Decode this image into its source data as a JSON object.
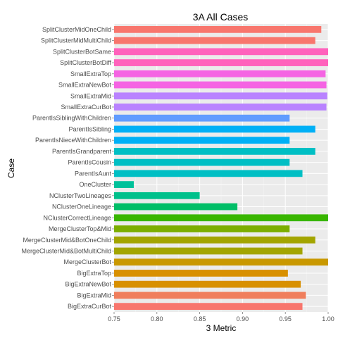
{
  "chart_data": {
    "type": "bar",
    "orientation": "horizontal",
    "title": "3A All Cases",
    "xlabel": "3 Metric",
    "ylabel": "Case",
    "xlim": [
      0.75,
      1.0
    ],
    "xticks": [
      "0.75",
      "0.80",
      "0.85",
      "0.90",
      "0.95",
      "1.00"
    ],
    "xtick_values": [
      0.75,
      0.8,
      0.85,
      0.9,
      0.95,
      1.0
    ],
    "grid": true,
    "panel_background": "#ebebeb",
    "grid_color": "#ffffff",
    "categories": [
      "SplitClusterMidOneChild",
      "SplitClusterMidMultiChild",
      "SplitClusterBotSame",
      "SplitClusterBotDiff",
      "SmallExtraTop",
      "SmallExtraNewBot",
      "SmallExtraMid",
      "SmallExtraCurBot",
      "ParentIsSiblingWithChildren",
      "ParentIsSibling",
      "ParentIsNieceWithChildren",
      "ParentIsGrandparent",
      "ParentIsCousin",
      "ParentIsAunt",
      "OneCluster",
      "NClusterTwoLineages",
      "NClusterOneLineage",
      "NClusterCorrectLineage",
      "MergeClusterTop&Mid",
      "MergeClusterMid&BotOneChild",
      "MergeClusterMid&BotMultiChild",
      "MergeClusterBot",
      "BigExtraTop",
      "BigExtraNewBot",
      "BigExtraMid",
      "BigExtraCurBot"
    ],
    "values": [
      0.992,
      0.985,
      1.0,
      1.0,
      0.997,
      0.998,
      0.999,
      0.998,
      0.955,
      0.985,
      0.955,
      0.985,
      0.955,
      0.97,
      0.773,
      0.85,
      0.894,
      1.0,
      0.955,
      0.985,
      0.97,
      1.0,
      0.953,
      0.968,
      0.974,
      0.97
    ],
    "colors": [
      "#f8766d",
      "#f8766d",
      "#ff62bc",
      "#ff62bc",
      "#f564e3",
      "#f564e3",
      "#b983ff",
      "#b983ff",
      "#619cff",
      "#00b0f6",
      "#00b0f6",
      "#00bfc4",
      "#00bfc4",
      "#00bfc4",
      "#00c19a",
      "#00c08b",
      "#00be67",
      "#39b600",
      "#7cae00",
      "#a3a500",
      "#a3a500",
      "#c99800",
      "#d89000",
      "#d89000",
      "#f07e5c",
      "#f8766d"
    ]
  }
}
